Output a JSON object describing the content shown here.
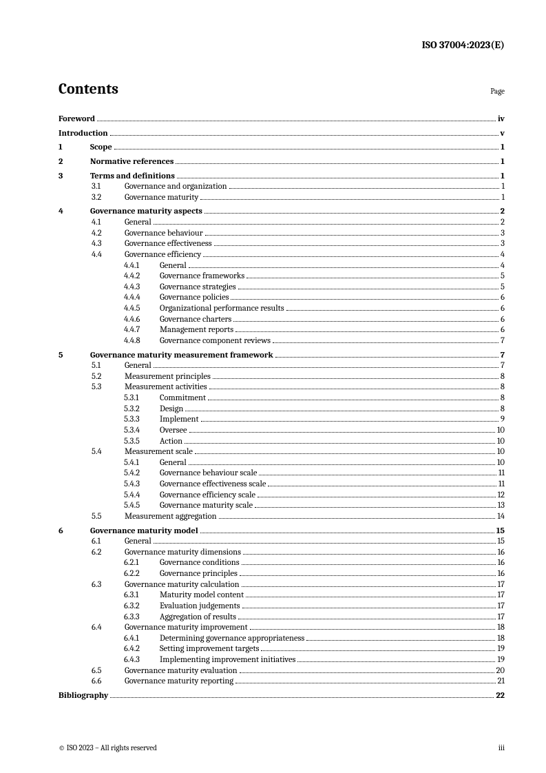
{
  "header": {
    "doc_id": "ISO 37004:2023(E)"
  },
  "contents": {
    "title": "Contents",
    "page_label": "Page"
  },
  "footer": {
    "copyright": "© ISO 2023 – All rights reserved",
    "page_num": "iii"
  },
  "toc": [
    {
      "level": 0,
      "bold": true,
      "num": "",
      "label": "Foreword",
      "page": "iv",
      "gap": false
    },
    {
      "level": 0,
      "bold": true,
      "num": "",
      "label": "Introduction",
      "page": "v",
      "gap": true
    },
    {
      "level": 1,
      "bold": true,
      "num": "1",
      "label": "Scope",
      "page": "1",
      "gap": true
    },
    {
      "level": 1,
      "bold": true,
      "num": "2",
      "label": "Normative references",
      "page": "1",
      "gap": true
    },
    {
      "level": 1,
      "bold": true,
      "num": "3",
      "label": "Terms and definitions",
      "page": "1",
      "gap": true
    },
    {
      "level": 2,
      "bold": false,
      "num": "3.1",
      "label": "Governance and organization",
      "page": "1",
      "gap": false
    },
    {
      "level": 2,
      "bold": false,
      "num": "3.2",
      "label": "Governance maturity",
      "page": "1",
      "gap": false
    },
    {
      "level": 1,
      "bold": true,
      "num": "4",
      "label": "Governance maturity aspects",
      "page": "2",
      "gap": true
    },
    {
      "level": 2,
      "bold": false,
      "num": "4.1",
      "label": "General",
      "page": "2",
      "gap": false
    },
    {
      "level": 2,
      "bold": false,
      "num": "4.2",
      "label": "Governance behaviour",
      "page": "3",
      "gap": false
    },
    {
      "level": 2,
      "bold": false,
      "num": "4.3",
      "label": "Governance effectiveness",
      "page": "3",
      "gap": false
    },
    {
      "level": 2,
      "bold": false,
      "num": "4.4",
      "label": "Governance efficiency",
      "page": "4",
      "gap": false
    },
    {
      "level": 3,
      "bold": false,
      "num": "4.4.1",
      "label": "General",
      "page": "4",
      "gap": false
    },
    {
      "level": 3,
      "bold": false,
      "num": "4.4.2",
      "label": "Governance frameworks",
      "page": "5",
      "gap": false
    },
    {
      "level": 3,
      "bold": false,
      "num": "4.4.3",
      "label": "Governance strategies",
      "page": "5",
      "gap": false
    },
    {
      "level": 3,
      "bold": false,
      "num": "4.4.4",
      "label": "Governance policies",
      "page": "6",
      "gap": false
    },
    {
      "level": 3,
      "bold": false,
      "num": "4.4.5",
      "label": "Organizational performance results",
      "page": "6",
      "gap": false
    },
    {
      "level": 3,
      "bold": false,
      "num": "4.4.6",
      "label": "Governance charters",
      "page": "6",
      "gap": false
    },
    {
      "level": 3,
      "bold": false,
      "num": "4.4.7",
      "label": "Management reports",
      "page": "6",
      "gap": false
    },
    {
      "level": 3,
      "bold": false,
      "num": "4.4.8",
      "label": "Governance component reviews",
      "page": "7",
      "gap": false
    },
    {
      "level": 1,
      "bold": true,
      "num": "5",
      "label": "Governance maturity measurement framework",
      "page": "7",
      "gap": true
    },
    {
      "level": 2,
      "bold": false,
      "num": "5.1",
      "label": "General",
      "page": "7",
      "gap": false
    },
    {
      "level": 2,
      "bold": false,
      "num": "5.2",
      "label": "Measurement principles",
      "page": "8",
      "gap": false
    },
    {
      "level": 2,
      "bold": false,
      "num": "5.3",
      "label": "Measurement activities",
      "page": "8",
      "gap": false
    },
    {
      "level": 3,
      "bold": false,
      "num": "5.3.1",
      "label": "Commitment",
      "page": "8",
      "gap": false
    },
    {
      "level": 3,
      "bold": false,
      "num": "5.3.2",
      "label": "Design",
      "page": "8",
      "gap": false
    },
    {
      "level": 3,
      "bold": false,
      "num": "5.3.3",
      "label": "Implement",
      "page": "9",
      "gap": false
    },
    {
      "level": 3,
      "bold": false,
      "num": "5.3.4",
      "label": "Oversee",
      "page": "10",
      "gap": false
    },
    {
      "level": 3,
      "bold": false,
      "num": "5.3.5",
      "label": "Action",
      "page": "10",
      "gap": false
    },
    {
      "level": 2,
      "bold": false,
      "num": "5.4",
      "label": "Measurement scale",
      "page": "10",
      "gap": false
    },
    {
      "level": 3,
      "bold": false,
      "num": "5.4.1",
      "label": "General",
      "page": "10",
      "gap": false
    },
    {
      "level": 3,
      "bold": false,
      "num": "5.4.2",
      "label": "Governance behaviour scale",
      "page": "11",
      "gap": false
    },
    {
      "level": 3,
      "bold": false,
      "num": "5.4.3",
      "label": "Governance effectiveness scale",
      "page": "11",
      "gap": false
    },
    {
      "level": 3,
      "bold": false,
      "num": "5.4.4",
      "label": "Governance efficiency scale",
      "page": "12",
      "gap": false
    },
    {
      "level": 3,
      "bold": false,
      "num": "5.4.5",
      "label": "Governance maturity scale",
      "page": "13",
      "gap": false
    },
    {
      "level": 2,
      "bold": false,
      "num": "5.5",
      "label": "Measurement aggregation",
      "page": "14",
      "gap": false
    },
    {
      "level": 1,
      "bold": true,
      "num": "6",
      "label": "Governance maturity model",
      "page": "15",
      "gap": true
    },
    {
      "level": 2,
      "bold": false,
      "num": "6.1",
      "label": "General",
      "page": "15",
      "gap": false
    },
    {
      "level": 2,
      "bold": false,
      "num": "6.2",
      "label": "Governance maturity dimensions",
      "page": "16",
      "gap": false
    },
    {
      "level": 3,
      "bold": false,
      "num": "6.2.1",
      "label": "Governance conditions",
      "page": "16",
      "gap": false
    },
    {
      "level": 3,
      "bold": false,
      "num": "6.2.2",
      "label": "Governance principles",
      "page": "16",
      "gap": false
    },
    {
      "level": 2,
      "bold": false,
      "num": "6.3",
      "label": "Governance maturity calculation",
      "page": "17",
      "gap": false
    },
    {
      "level": 3,
      "bold": false,
      "num": "6.3.1",
      "label": "Maturity model content",
      "page": "17",
      "gap": false
    },
    {
      "level": 3,
      "bold": false,
      "num": "6.3.2",
      "label": "Evaluation judgements",
      "page": "17",
      "gap": false
    },
    {
      "level": 3,
      "bold": false,
      "num": "6.3.3",
      "label": "Aggregation of results",
      "page": "17",
      "gap": false
    },
    {
      "level": 2,
      "bold": false,
      "num": "6.4",
      "label": "Governance maturity improvement",
      "page": "18",
      "gap": false
    },
    {
      "level": 3,
      "bold": false,
      "num": "6.4.1",
      "label": "Determining governance appropriateness",
      "page": "18",
      "gap": false
    },
    {
      "level": 3,
      "bold": false,
      "num": "6.4.2",
      "label": "Setting improvement targets",
      "page": "19",
      "gap": false
    },
    {
      "level": 3,
      "bold": false,
      "num": "6.4.3",
      "label": "Implementing improvement initiatives",
      "page": "19",
      "gap": false
    },
    {
      "level": 2,
      "bold": false,
      "num": "6.5",
      "label": "Governance maturity evaluation",
      "page": "20",
      "gap": false
    },
    {
      "level": 2,
      "bold": false,
      "num": "6.6",
      "label": "Governance maturity reporting",
      "page": "21",
      "gap": false
    },
    {
      "level": 0,
      "bold": true,
      "num": "",
      "label": "Bibliography",
      "page": "22",
      "gap": true
    }
  ]
}
